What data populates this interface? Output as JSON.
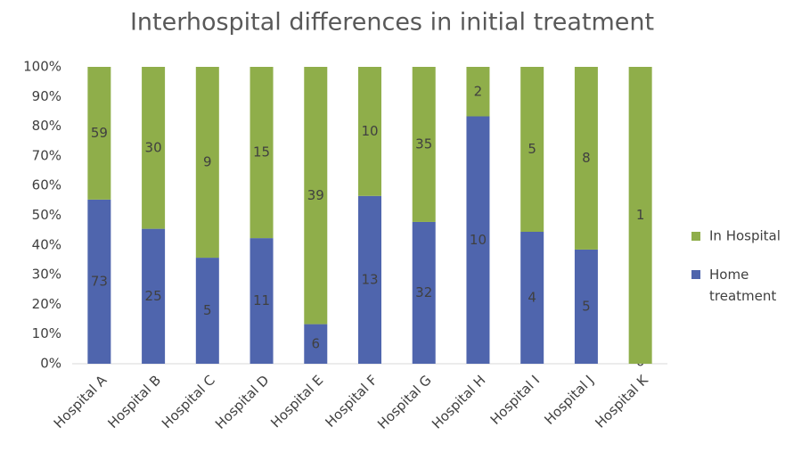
{
  "chart_data": {
    "type": "bar",
    "stacked": "percent",
    "title": "Interhospital differences in initial treatment",
    "categories": [
      "Hospital A",
      "Hospital B",
      "Hospital C",
      "Hospital D",
      "Hospital E",
      "Hospital F",
      "Hospital G",
      "Hospital H",
      "Hospital I",
      "Hospital J",
      "Hospital K"
    ],
    "series": [
      {
        "name": "Home treatment",
        "color": "#4f65ad",
        "values": [
          73,
          25,
          5,
          11,
          6,
          13,
          32,
          10,
          4,
          5,
          0
        ]
      },
      {
        "name": "In Hospital",
        "color": "#8fae4a",
        "values": [
          59,
          30,
          9,
          15,
          39,
          10,
          35,
          2,
          5,
          8,
          1
        ]
      }
    ],
    "ylim": [
      0,
      100
    ],
    "yticks": [
      {
        "value": 0,
        "label": "0%"
      },
      {
        "value": 10,
        "label": "10%"
      },
      {
        "value": 20,
        "label": "20%"
      },
      {
        "value": 30,
        "label": "30%"
      },
      {
        "value": 40,
        "label": "40%"
      },
      {
        "value": 50,
        "label": "50%"
      },
      {
        "value": 60,
        "label": "60%"
      },
      {
        "value": 70,
        "label": "70%"
      },
      {
        "value": 80,
        "label": "80%"
      },
      {
        "value": 90,
        "label": "90%"
      },
      {
        "value": 100,
        "label": "100%"
      }
    ],
    "grid": false,
    "legend": "right"
  }
}
